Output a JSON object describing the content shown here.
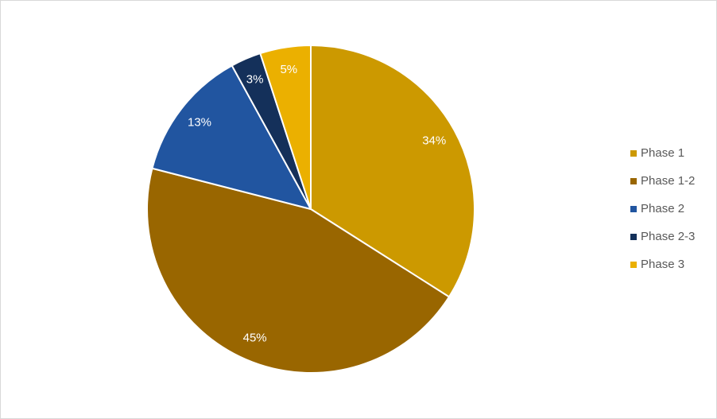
{
  "chart_data": {
    "type": "pie",
    "categories": [
      "Phase 1",
      "Phase 1-2",
      "Phase 2",
      "Phase 2-3",
      "Phase 3"
    ],
    "values": [
      34,
      45,
      13,
      3,
      5
    ],
    "value_labels": [
      "34%",
      "45%",
      "13%",
      "3%",
      "5%"
    ],
    "colors": [
      "#cc9900",
      "#996600",
      "#2155a0",
      "#14305a",
      "#ebb000"
    ],
    "legend": "right"
  }
}
